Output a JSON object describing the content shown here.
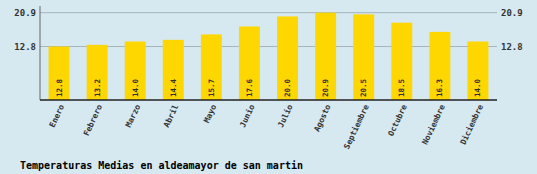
{
  "chart_data": {
    "type": "bar",
    "title": "Temperaturas Medias en aldeamayor de san martin",
    "categories": [
      "Enero",
      "Febrero",
      "Marzo",
      "Abril",
      "Mayo",
      "Junio",
      "Julio",
      "Agosto",
      "Septiembre",
      "Octubre",
      "Noviembre",
      "Diciembre"
    ],
    "values": [
      12.8,
      13.2,
      14.0,
      14.4,
      15.7,
      17.6,
      20.0,
      20.9,
      20.5,
      18.5,
      16.3,
      14.0
    ],
    "value_labels": [
      "12.8",
      "13.2",
      "14.0",
      "14.4",
      "15.7",
      "17.6",
      "20.0",
      "20.9",
      "20.5",
      "18.5",
      "16.3",
      "14.0"
    ],
    "color": "#FFD700",
    "ylim": [
      0.0,
      22.5
    ],
    "yticks": [
      20.9,
      12.8
    ],
    "grid": true,
    "data_labels": true
  }
}
